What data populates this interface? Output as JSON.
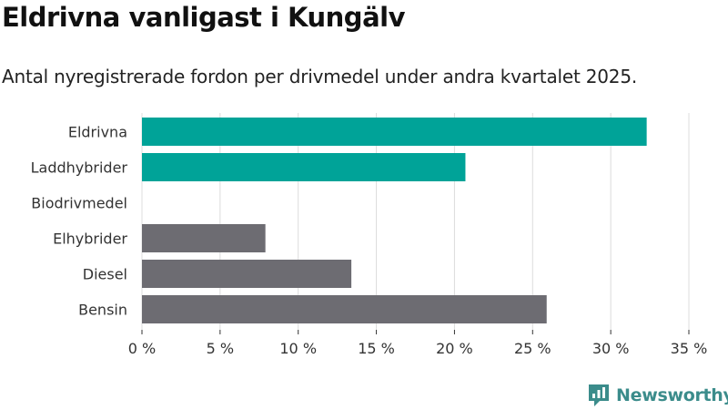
{
  "header": {
    "title": "Eldrivna vanligast i Kungälv",
    "subtitle": "Antal nyregistrerade fordon per drivmedel under andra kvartalet 2025."
  },
  "brand": {
    "name": "Newsworthy",
    "icon": "newsworthy-logo-icon",
    "color": "#3b8c8b"
  },
  "chart_data": {
    "type": "bar",
    "orientation": "horizontal",
    "categories": [
      "Eldrivna",
      "Laddhybrider",
      "Biodrivmedel",
      "Elhybrider",
      "Diesel",
      "Bensin"
    ],
    "values": [
      32.3,
      20.7,
      0,
      7.9,
      13.4,
      25.9
    ],
    "colors": [
      "#00a398",
      "#00a398",
      "#00a398",
      "#6d6c72",
      "#6d6c72",
      "#6d6c72"
    ],
    "xlim": [
      0,
      35
    ],
    "xticks": [
      0,
      5,
      10,
      15,
      20,
      25,
      30,
      35
    ],
    "xtick_labels": [
      "0 %",
      "5 %",
      "10 %",
      "15 %",
      "20 %",
      "25 %",
      "30 %",
      "35 %"
    ],
    "grid": true
  }
}
